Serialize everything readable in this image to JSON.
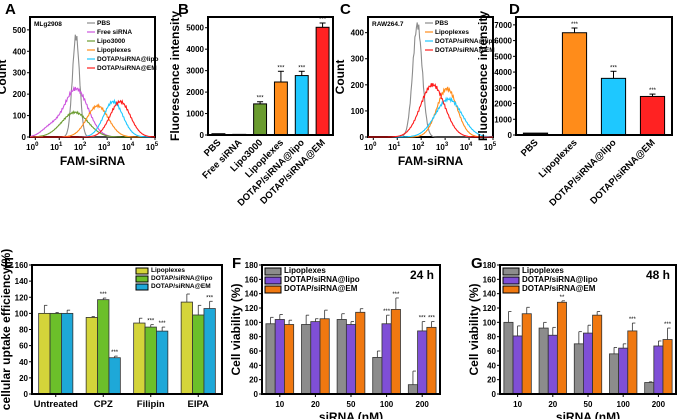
{
  "chart_data": [
    {
      "id": "A",
      "panel_label": "A",
      "type": "line",
      "title": "",
      "annotation": "MLg2908",
      "xlabel": "FAM-siRNA",
      "ylabel": "Count",
      "xscale": "log",
      "xlim": [
        0.6,
        100000
      ],
      "ylim": [
        0,
        560
      ],
      "xticks": [
        "10^0",
        "10^1",
        "10^2",
        "10^3",
        "10^4",
        "10^5"
      ],
      "yticks": [
        0,
        100,
        200,
        300,
        400,
        500
      ],
      "legend_position": "top-right",
      "series": [
        {
          "name": "PBS",
          "color": "#8c8c8c",
          "peak_x": 50,
          "peak_y": 470,
          "width": 0.15
        },
        {
          "name": "Free siRNA",
          "color": "#cc55dd",
          "peak_x": 50,
          "peak_y": 225,
          "width": 0.5,
          "shoulder": true
        },
        {
          "name": "Lipo3000",
          "color": "#6a9b2f",
          "peak_x": 45,
          "peak_y": 115,
          "width": 0.55
        },
        {
          "name": "Lipoplexes",
          "color": "#ff8c1a",
          "peak_x": 400,
          "peak_y": 145,
          "width": 0.45
        },
        {
          "name": "DOTAP/siRNA@lipo",
          "color": "#1ec8ff",
          "peak_x": 1800,
          "peak_y": 165,
          "width": 0.4
        },
        {
          "name": "DOTAP/siRNA@EM",
          "color": "#ff1a1a",
          "peak_x": 3500,
          "peak_y": 165,
          "width": 0.42
        }
      ]
    },
    {
      "id": "B",
      "panel_label": "B",
      "type": "bar",
      "ylabel": "Fluorescence intensity",
      "ylim": [
        0,
        5500
      ],
      "yticks": [
        0,
        1000,
        2000,
        3000,
        4000,
        5000
      ],
      "categories": [
        "PBS",
        "Free siRNA",
        "Lipo3000",
        "Lipoplexes",
        "DOTAP/siRNA@lipo",
        "DOTAP/siRNA@EM"
      ],
      "values": [
        60,
        30,
        1450,
        2470,
        2770,
        5020
      ],
      "errors": [
        0,
        0,
        100,
        500,
        200,
        200
      ],
      "colors": [
        "#111111",
        "#111111",
        "#6a9b2f",
        "#ff8c1a",
        "#1ec8ff",
        "#ff2222"
      ],
      "significance": [
        "",
        "",
        "***",
        "***",
        "***",
        "***"
      ]
    },
    {
      "id": "C",
      "panel_label": "C",
      "type": "line",
      "annotation": "RAW264.7",
      "xlabel": "FAM-siRNA",
      "ylabel": "Count",
      "xscale": "log",
      "xlim": [
        0.6,
        100000
      ],
      "ylim": [
        0,
        460
      ],
      "xticks": [
        "10^0",
        "10^1",
        "10^2",
        "10^3",
        "10^4",
        "10^5"
      ],
      "yticks": [
        0,
        100,
        200,
        300,
        400
      ],
      "legend_position": "top-right",
      "series": [
        {
          "name": "PBS",
          "color": "#8c8c8c",
          "peak_x": 70,
          "peak_y": 430,
          "width": 0.2
        },
        {
          "name": "Lipoplexes",
          "color": "#ff8c1a",
          "peak_x": 1200,
          "peak_y": 185,
          "width": 0.42
        },
        {
          "name": "DOTAP/siRNA@lipo",
          "color": "#1ec8ff",
          "peak_x": 1400,
          "peak_y": 145,
          "width": 0.55
        },
        {
          "name": "DOTAP/siRNA@EM",
          "color": "#ff1a1a",
          "peak_x": 300,
          "peak_y": 200,
          "width": 0.5
        }
      ]
    },
    {
      "id": "D",
      "panel_label": "D",
      "type": "bar",
      "ylabel": "Fluorescence intensity",
      "ylim": [
        0,
        7500
      ],
      "yticks": [
        0,
        1000,
        2000,
        3000,
        4000,
        5000,
        6000,
        7000
      ],
      "categories": [
        "PBS",
        "Lipoplexes",
        "DOTAP/siRNA@lipo",
        "DOTAP/siRNA@EM"
      ],
      "values": [
        120,
        6500,
        3600,
        2450
      ],
      "errors": [
        0,
        300,
        450,
        150
      ],
      "colors": [
        "#111111",
        "#ff8c1a",
        "#1ec8ff",
        "#ff2222"
      ],
      "significance": [
        "",
        "***",
        "***",
        "***"
      ]
    },
    {
      "id": "E",
      "panel_label": "E",
      "type": "bar",
      "ylabel": "cellular uptake efficiency(%)",
      "ylim": [
        0,
        160
      ],
      "yticks": [
        0,
        20,
        40,
        60,
        80,
        100,
        120,
        140,
        160
      ],
      "categories": [
        "Untreated",
        "CPZ",
        "Filipin",
        "EIPA"
      ],
      "legend_position": "top-right",
      "series": [
        {
          "name": "Lipoplexes",
          "color": "#d4d43a",
          "values": [
            100,
            95,
            88,
            114
          ],
          "errors": [
            10,
            1,
            6,
            10
          ],
          "significance": [
            "",
            "",
            "",
            ""
          ]
        },
        {
          "name": "DOTAP/siRNA@lipo",
          "color": "#6cbf2a",
          "values": [
            100,
            117,
            83,
            98
          ],
          "errors": [
            1,
            2,
            3,
            12
          ],
          "significance": [
            "",
            "***",
            "***",
            ""
          ]
        },
        {
          "name": "DOTAP/siRNA@EM",
          "color": "#1ea8d8",
          "values": [
            100,
            45,
            78,
            106
          ],
          "errors": [
            4,
            2,
            5,
            9
          ],
          "significance": [
            "",
            "***",
            "***",
            "***"
          ]
        }
      ]
    },
    {
      "id": "F",
      "panel_label": "F",
      "type": "bar",
      "annotation": "24 h",
      "xlabel": "siRNA (nM)",
      "ylabel": "Cell viability (%)",
      "ylim": [
        0,
        180
      ],
      "yticks": [
        0,
        20,
        40,
        60,
        80,
        100,
        120,
        140,
        160,
        180
      ],
      "categories": [
        "10",
        "20",
        "50",
        "100",
        "200"
      ],
      "legend_position": "top-left",
      "series": [
        {
          "name": "Lipoplexes",
          "color": "#8c8c8c",
          "values": [
            98,
            97,
            104,
            51,
            13
          ],
          "errors": [
            9,
            13,
            8,
            9,
            19
          ],
          "significance": [
            "",
            "",
            "",
            "",
            ""
          ]
        },
        {
          "name": "DOTAP/siRNA@lipo",
          "color": "#7f4fd6",
          "values": [
            104,
            101,
            97,
            98,
            88
          ],
          "errors": [
            7,
            4,
            4,
            12,
            13
          ],
          "significance": [
            "",
            "",
            "",
            "***",
            "***"
          ]
        },
        {
          "name": "DOTAP/siRNA@EM",
          "color": "#f07810",
          "values": [
            97,
            105,
            114,
            118,
            93
          ],
          "errors": [
            6,
            12,
            5,
            16,
            8
          ],
          "significance": [
            "",
            "",
            "",
            "***",
            "***"
          ]
        }
      ]
    },
    {
      "id": "G",
      "panel_label": "G",
      "type": "bar",
      "annotation": "48 h",
      "xlabel": "siRNA (nM)",
      "ylabel": "Cell viability (%)",
      "ylim": [
        0,
        180
      ],
      "yticks": [
        0,
        20,
        40,
        60,
        80,
        100,
        120,
        140,
        160,
        180
      ],
      "categories": [
        "10",
        "20",
        "50",
        "100",
        "200"
      ],
      "legend_position": "top-left",
      "series": [
        {
          "name": "Lipoplexes",
          "color": "#8c8c8c",
          "values": [
            100,
            92,
            70,
            56,
            16
          ],
          "errors": [
            15,
            8,
            17,
            9,
            1
          ],
          "significance": [
            "",
            "",
            "",
            "",
            ""
          ]
        },
        {
          "name": "DOTAP/siRNA@lipo",
          "color": "#7f4fd6",
          "values": [
            81,
            82,
            85,
            64,
            67
          ],
          "errors": [
            14,
            11,
            11,
            6,
            7
          ],
          "significance": [
            "",
            "",
            "",
            "",
            ""
          ]
        },
        {
          "name": "DOTAP/siRNA@EM",
          "color": "#f07810",
          "values": [
            112,
            128,
            110,
            88,
            76
          ],
          "errors": [
            9,
            2,
            5,
            11,
            16
          ],
          "significance": [
            "",
            "**",
            "",
            "***",
            "***"
          ]
        }
      ]
    }
  ]
}
